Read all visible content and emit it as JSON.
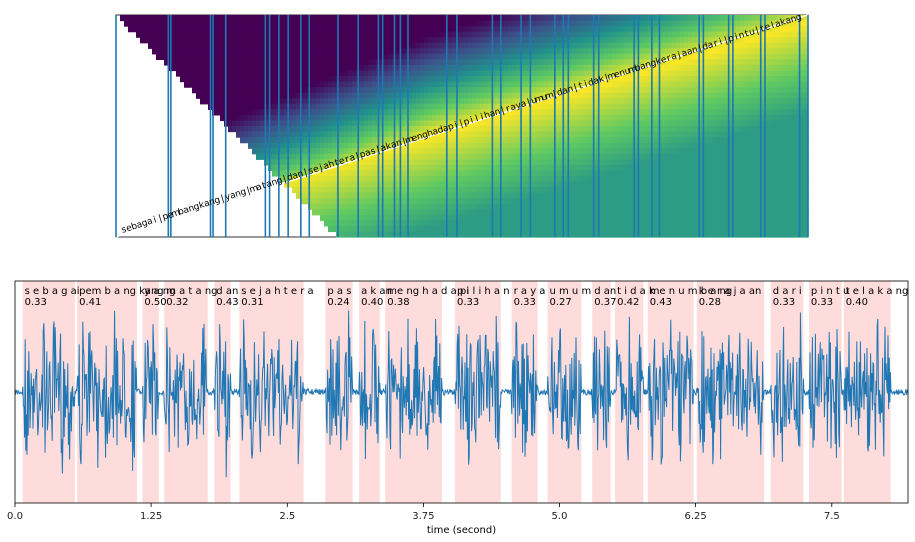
{
  "chart_data": [
    {
      "type": "heatmap",
      "title": "",
      "colormap": "viridis",
      "colormap_colors": [
        "#440154",
        "#3b528b",
        "#21918c",
        "#5ec962",
        "#fde725"
      ],
      "boundary_color": "#1f77b4",
      "token_labels": [
        "s",
        "e",
        "b",
        "a",
        "g",
        "a",
        "i",
        "|",
        "p",
        "e",
        "m",
        "b",
        "a",
        "n",
        "g",
        "k",
        "a",
        "n",
        "g",
        "|",
        "y",
        "a",
        "n",
        "g",
        "|",
        "m",
        "a",
        "t",
        "a",
        "n",
        "g",
        "|",
        "d",
        "a",
        "n",
        "|",
        "s",
        "e",
        "j",
        "a",
        "h",
        "t",
        "e",
        "r",
        "a",
        "|",
        "p",
        "a",
        "s",
        "|",
        "a",
        "k",
        "a",
        "n",
        "|",
        "m",
        "e",
        "n",
        "g",
        "h",
        "a",
        "d",
        "a",
        "p",
        "i",
        "|",
        "p",
        "i",
        "l",
        "i",
        "h",
        "a",
        "n",
        "|",
        "r",
        "a",
        "y",
        "a",
        "|",
        "u",
        "m",
        "u",
        "m",
        "|",
        "d",
        "a",
        "n",
        "|",
        "t",
        "i",
        "d",
        "a",
        "k",
        "|",
        "m",
        "e",
        "n",
        "u",
        "m",
        "b",
        "a",
        "n",
        "g",
        "k",
        "e",
        "r",
        "a",
        "j",
        "a",
        "a",
        "n",
        "|",
        "d",
        "a",
        "r",
        "i",
        "|",
        "p",
        "i",
        "n",
        "t",
        "u",
        "|",
        "t",
        "e",
        "l",
        "a",
        "k",
        "a",
        "n",
        "g"
      ],
      "frame_boundaries": [
        0,
        0.62,
        0.65,
        1.12,
        1.15,
        1.3,
        1.77,
        1.82,
        1.93,
        2.04,
        2.19,
        2.29,
        2.63,
        2.87,
        3.11,
        3.16,
        3.3,
        3.37,
        3.46,
        3.92,
        4.04,
        4.46,
        4.56,
        4.8,
        4.91,
        5.2,
        5.3,
        5.36,
        5.66,
        5.72,
        6.14,
        6.19,
        6.35,
        6.44,
        6.91,
        6.96,
        7.26,
        7.31,
        7.64,
        7.69,
        8.1,
        8.2
      ]
    },
    {
      "type": "line",
      "title": "",
      "xlabel": "time (second)",
      "ylabel": "",
      "xlim": [
        0,
        8.2
      ],
      "xticks": [
        0.0,
        1.25,
        2.5,
        3.75,
        5.0,
        6.25,
        7.5
      ],
      "xtick_labels": [
        "0.0",
        "1.25",
        "2.5",
        "3.75",
        "5.0",
        "6.25",
        "7.5"
      ],
      "series": [
        {
          "color": "#1f77b4"
        }
      ],
      "segment_color": "#ffdcdc",
      "segments": [
        {
          "label": "s e b a g ai",
          "score": "0.33",
          "start": 0.07,
          "end": 0.55
        },
        {
          "label": "pem b a ng kang",
          "score": "0.41",
          "start": 0.57,
          "end": 1.12
        },
        {
          "label": "y a ng",
          "score": "0.50",
          "start": 1.17,
          "end": 1.32
        },
        {
          "label": "m a  t a ng",
          "score": "0.32",
          "start": 1.37,
          "end": 1.77
        },
        {
          "label": "d an",
          "score": "0.43",
          "start": 1.83,
          "end": 1.98
        },
        {
          "label": "s e j a h t e r a",
          "score": "0.31",
          "start": 2.06,
          "end": 2.65
        },
        {
          "label": "p a s",
          "score": "0.24",
          "start": 2.85,
          "end": 3.1
        },
        {
          "label": "a k an",
          "score": "0.40",
          "start": 3.16,
          "end": 3.35
        },
        {
          "label": "me ng h a d a  pi",
          "score": "0.38",
          "start": 3.4,
          "end": 3.92
        },
        {
          "label": "p i l i h a n",
          "score": "0.33",
          "start": 4.04,
          "end": 4.46
        },
        {
          "label": "r a y a",
          "score": "0.33",
          "start": 4.56,
          "end": 4.8
        },
        {
          "label": "u m u m",
          "score": "0.27",
          "start": 4.89,
          "end": 5.2
        },
        {
          "label": "d an",
          "score": "0.37",
          "start": 5.3,
          "end": 5.47
        },
        {
          "label": "t i d a k",
          "score": "0.42",
          "start": 5.51,
          "end": 5.77
        },
        {
          "label": "me n u m b a ng",
          "score": "0.43",
          "start": 5.81,
          "end": 6.23
        },
        {
          "label": "k e r a j a  an",
          "score": "0.28",
          "start": 6.26,
          "end": 6.88
        },
        {
          "label": "d a r i",
          "score": "0.33",
          "start": 6.94,
          "end": 7.24
        },
        {
          "label": "p i n t u",
          "score": "0.33",
          "start": 7.29,
          "end": 7.59
        },
        {
          "label": "t e l a k a ng",
          "score": "0.40",
          "start": 7.61,
          "end": 8.04
        }
      ]
    }
  ]
}
